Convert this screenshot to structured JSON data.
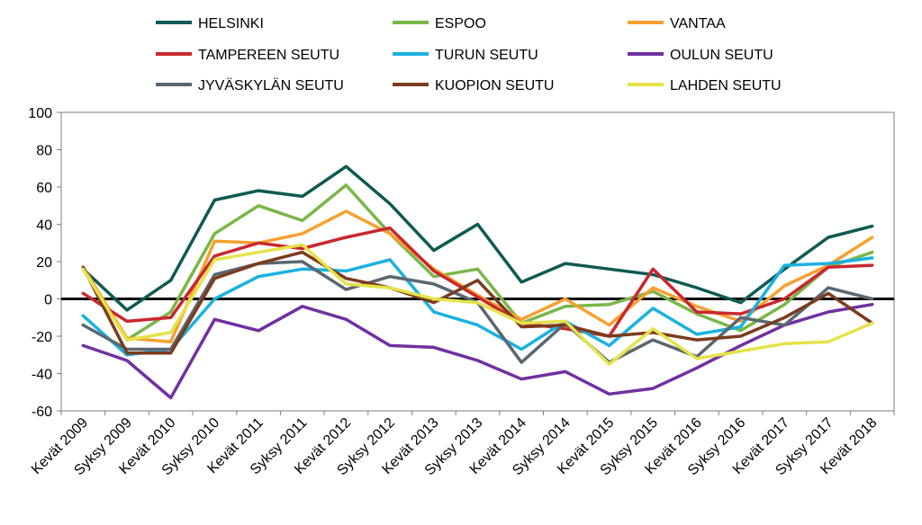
{
  "chart_data": {
    "type": "line",
    "categories": [
      "Kevät 2009",
      "Syksy 2009",
      "Kevät 2010",
      "Syksy 2010",
      "Kevät 2011",
      "Syksy 2011",
      "Kevät 2012",
      "Syksy 2012",
      "Kevät 2013",
      "Syksy 2013",
      "Kevät 2014",
      "Syksy 2014",
      "Kevät 2015",
      "Syksy 2015",
      "Kevät 2016",
      "Syksy 2016",
      "Kevät 2017",
      "Syksy 2017",
      "Kevät 2018"
    ],
    "ylim": [
      -60,
      100
    ],
    "yticks": [
      "100",
      "80",
      "60",
      "40",
      "20",
      "0",
      "-20",
      "-40",
      "-60"
    ],
    "grid": false,
    "legend_position": "top",
    "series": [
      {
        "name": "HELSINKI",
        "color": "#0f5a53",
        "values": [
          16,
          -6,
          10,
          53,
          58,
          55,
          71,
          51,
          26,
          40,
          9,
          19,
          16,
          13,
          6,
          -2,
          16,
          33,
          39
        ]
      },
      {
        "name": "ESPOO",
        "color": "#7ab648",
        "values": [
          16,
          -22,
          -7,
          35,
          50,
          42,
          61,
          35,
          12,
          16,
          -13,
          -4,
          -3,
          4,
          -8,
          -17,
          -3,
          17,
          25
        ]
      },
      {
        "name": "VANTAA",
        "color": "#f7a030",
        "values": [
          17,
          -21,
          -23,
          31,
          30,
          35,
          47,
          35,
          16,
          2,
          -11,
          0,
          -14,
          6,
          -4,
          -12,
          7,
          18,
          33
        ]
      },
      {
        "name": "TAMPEREEN SEUTU",
        "color": "#c8282e",
        "values": [
          3,
          -12,
          -10,
          23,
          30,
          27,
          33,
          38,
          15,
          1,
          -13,
          -16,
          -20,
          16,
          -7,
          -8,
          0,
          17,
          18
        ]
      },
      {
        "name": "TURUN SEUTU",
        "color": "#1ab1e0",
        "values": [
          -9,
          -30,
          -27,
          0,
          12,
          16,
          15,
          21,
          -7,
          -14,
          -27,
          -12,
          -25,
          -5,
          -19,
          -15,
          18,
          19,
          22
        ]
      },
      {
        "name": "OULUN SEUTU",
        "color": "#7030a0",
        "values": [
          -25,
          -33,
          -53,
          -11,
          -17,
          -4,
          -11,
          -25,
          -26,
          -33,
          -43,
          -39,
          -51,
          -48,
          -37,
          -25,
          -14,
          -7,
          -3
        ]
      },
      {
        "name": "JYVÄSKYLÄN SEUTU",
        "color": "#5a6770",
        "values": [
          -14,
          -27,
          -27,
          13,
          19,
          20,
          5,
          12,
          8,
          -2,
          -34,
          -13,
          -34,
          -22,
          -31,
          -10,
          -14,
          6,
          0
        ]
      },
      {
        "name": "KUOPION SEUTU",
        "color": "#7b3b1e",
        "values": [
          17,
          -29,
          -29,
          11,
          19,
          25,
          11,
          6,
          -2,
          10,
          -15,
          -14,
          -20,
          -18,
          -22,
          -20,
          -10,
          3,
          -13
        ]
      },
      {
        "name": "LAHDEN SEUTU",
        "color": "#e4e34a",
        "values": [
          16,
          -22,
          -18,
          21,
          25,
          29,
          8,
          6,
          0,
          -2,
          -13,
          -12,
          -35,
          -16,
          -32,
          -28,
          -24,
          -23,
          -13
        ]
      }
    ]
  }
}
